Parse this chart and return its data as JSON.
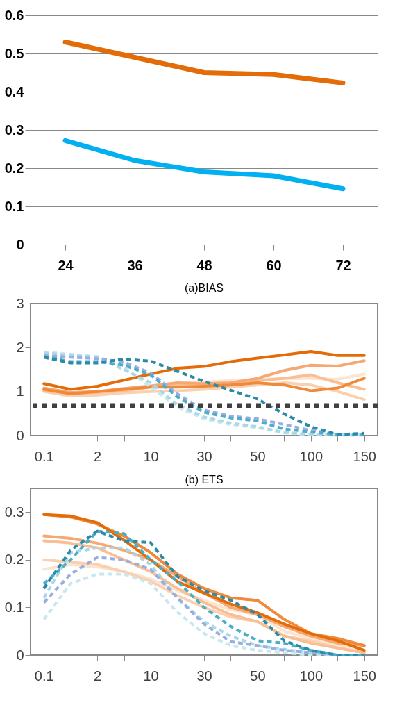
{
  "chart_data": [
    {
      "type": "line",
      "categories": [
        "24",
        "36",
        "48",
        "60",
        "72"
      ],
      "ylim": [
        0,
        0.6
      ],
      "yticks": [
        0,
        0.1,
        0.2,
        0.3,
        0.4,
        0.5,
        0.6
      ],
      "grid": "y",
      "series": [
        {
          "color": "#e36c09",
          "values": [
            0.53,
            0.49,
            0.45,
            0.445,
            0.423
          ]
        },
        {
          "color": "#00b0f0",
          "values": [
            0.272,
            0.22,
            0.19,
            0.18,
            0.146
          ]
        }
      ]
    },
    {
      "type": "line",
      "title": "(a)BIAS",
      "categories": [
        "0.1",
        null,
        "2",
        null,
        "10",
        null,
        "30",
        null,
        "50",
        null,
        "100",
        null,
        "150"
      ],
      "ylim": [
        0,
        3
      ],
      "yticks": [
        0,
        1,
        2,
        3
      ],
      "grid": false,
      "ref_lines": [
        {
          "axis": "y",
          "value": 0.68,
          "color": "#404040",
          "line_style": "dotted"
        }
      ],
      "series": [
        {
          "color": "#fde4d0",
          "line_style": "solid",
          "values": [
            1.05,
            0.98,
            1.0,
            1.05,
            1.12,
            1.18,
            1.22,
            1.25,
            1.28,
            1.3,
            1.3,
            1.28,
            1.4
          ]
        },
        {
          "color": "#fbd0b0",
          "line_style": "solid",
          "values": [
            1.0,
            0.9,
            0.92,
            0.97,
            1.0,
            1.02,
            1.05,
            1.1,
            1.15,
            1.2,
            1.15,
            1.0,
            0.82
          ]
        },
        {
          "color": "#f9bf94",
          "line_style": "solid",
          "values": [
            1.02,
            0.95,
            0.98,
            1.02,
            1.1,
            1.15,
            1.12,
            1.15,
            1.25,
            1.3,
            1.38,
            1.2,
            1.05
          ]
        },
        {
          "color": "#f5a872",
          "line_style": "solid",
          "values": [
            1.08,
            0.98,
            1.0,
            1.07,
            1.13,
            1.2,
            1.18,
            1.2,
            1.3,
            1.48,
            1.6,
            1.58,
            1.7
          ]
        },
        {
          "color": "#ee8a3a",
          "line_style": "solid",
          "values": [
            1.05,
            0.95,
            1.0,
            1.05,
            1.1,
            1.1,
            1.12,
            1.15,
            1.2,
            1.15,
            1.02,
            1.08,
            1.3
          ]
        },
        {
          "color": "#e36c09",
          "line_style": "solid",
          "values": [
            1.18,
            1.05,
            1.12,
            1.26,
            1.4,
            1.53,
            1.57,
            1.68,
            1.76,
            1.83,
            1.91,
            1.82,
            1.82
          ]
        },
        {
          "color": "#c8e8f0",
          "line_style": "dashed",
          "values": [
            1.9,
            1.85,
            1.8,
            1.55,
            1.1,
            0.65,
            0.38,
            0.25,
            0.18,
            0.06,
            0.02,
            0.01,
            0.01
          ]
        },
        {
          "color": "#a8d8e8",
          "line_style": "dashed",
          "values": [
            1.88,
            1.82,
            1.78,
            1.5,
            1.2,
            0.7,
            0.42,
            0.28,
            0.2,
            0.07,
            0.03,
            0.01,
            0.01
          ]
        },
        {
          "color": "#9aaee0",
          "line_style": "dashed",
          "values": [
            1.82,
            1.78,
            1.75,
            1.67,
            1.42,
            0.95,
            0.58,
            0.44,
            0.38,
            0.25,
            0.12,
            0.02,
            0.02
          ]
        },
        {
          "color": "#4aaec8",
          "line_style": "dashed",
          "values": [
            1.8,
            1.68,
            1.68,
            1.6,
            1.38,
            0.88,
            0.53,
            0.4,
            0.33,
            0.15,
            0.08,
            0.02,
            0.02
          ]
        },
        {
          "color": "#2a8aa8",
          "line_style": "dashed",
          "values": [
            1.78,
            1.65,
            1.65,
            1.74,
            1.69,
            1.46,
            1.23,
            1.03,
            0.83,
            0.49,
            0.2,
            0.02,
            0.05
          ]
        }
      ]
    },
    {
      "type": "line",
      "title": "(b) ETS",
      "categories": [
        "0.1",
        null,
        "2",
        null,
        "10",
        null,
        "30",
        null,
        "50",
        null,
        "100",
        null,
        "150"
      ],
      "ylim": [
        0,
        0.35
      ],
      "yticks": [
        0,
        0.1,
        0.2,
        0.3
      ],
      "grid": false,
      "series": [
        {
          "color": "#fde4d0",
          "line_style": "solid",
          "values": [
            0.18,
            0.19,
            0.185,
            0.175,
            0.16,
            0.135,
            0.115,
            0.095,
            0.085,
            0.05,
            0.035,
            0.02,
            0.01
          ]
        },
        {
          "color": "#fbd0b0",
          "line_style": "solid",
          "values": [
            0.2,
            0.195,
            0.19,
            0.175,
            0.155,
            0.125,
            0.1,
            0.08,
            0.07,
            0.04,
            0.03,
            0.015,
            0.005
          ]
        },
        {
          "color": "#f9bf94",
          "line_style": "solid",
          "values": [
            0.24,
            0.235,
            0.225,
            0.2,
            0.175,
            0.14,
            0.11,
            0.085,
            0.07,
            0.04,
            0.025,
            0.015,
            0.005
          ]
        },
        {
          "color": "#f5a872",
          "line_style": "solid",
          "values": [
            0.25,
            0.245,
            0.235,
            0.22,
            0.2,
            0.165,
            0.13,
            0.1,
            0.085,
            0.06,
            0.04,
            0.025,
            0.02
          ]
        },
        {
          "color": "#ee8a3a",
          "line_style": "solid",
          "values": [
            0.295,
            0.29,
            0.275,
            0.25,
            0.215,
            0.17,
            0.14,
            0.12,
            0.115,
            0.075,
            0.045,
            0.035,
            0.02
          ]
        },
        {
          "color": "#e36c09",
          "line_style": "solid",
          "values": [
            0.295,
            0.292,
            0.278,
            0.241,
            0.2,
            0.154,
            0.13,
            0.107,
            0.089,
            0.065,
            0.045,
            0.03,
            0.01
          ]
        },
        {
          "color": "#c8e8f0",
          "line_style": "dashed",
          "values": [
            0.075,
            0.15,
            0.17,
            0.17,
            0.15,
            0.09,
            0.045,
            0.02,
            0.01,
            0.005,
            0,
            0,
            0
          ]
        },
        {
          "color": "#a8d8e8",
          "line_style": "dashed",
          "values": [
            0.12,
            0.215,
            0.225,
            0.225,
            0.19,
            0.12,
            0.07,
            0.04,
            0.02,
            0.012,
            0.005,
            0,
            0
          ]
        },
        {
          "color": "#9aaee0",
          "line_style": "dashed",
          "values": [
            0.11,
            0.17,
            0.205,
            0.2,
            0.18,
            0.12,
            0.065,
            0.028,
            0.02,
            0.01,
            0.005,
            0,
            0
          ]
        },
        {
          "color": "#4aaec8",
          "line_style": "dashed",
          "values": [
            0.15,
            0.2,
            0.26,
            0.255,
            0.2,
            0.155,
            0.1,
            0.06,
            0.03,
            0.025,
            0.01,
            0,
            0
          ]
        },
        {
          "color": "#2a8aa8",
          "line_style": "dashed",
          "values": [
            0.14,
            0.22,
            0.26,
            0.24,
            0.236,
            0.165,
            0.135,
            0.115,
            0.085,
            0.03,
            0.01,
            0,
            0
          ]
        }
      ]
    }
  ]
}
